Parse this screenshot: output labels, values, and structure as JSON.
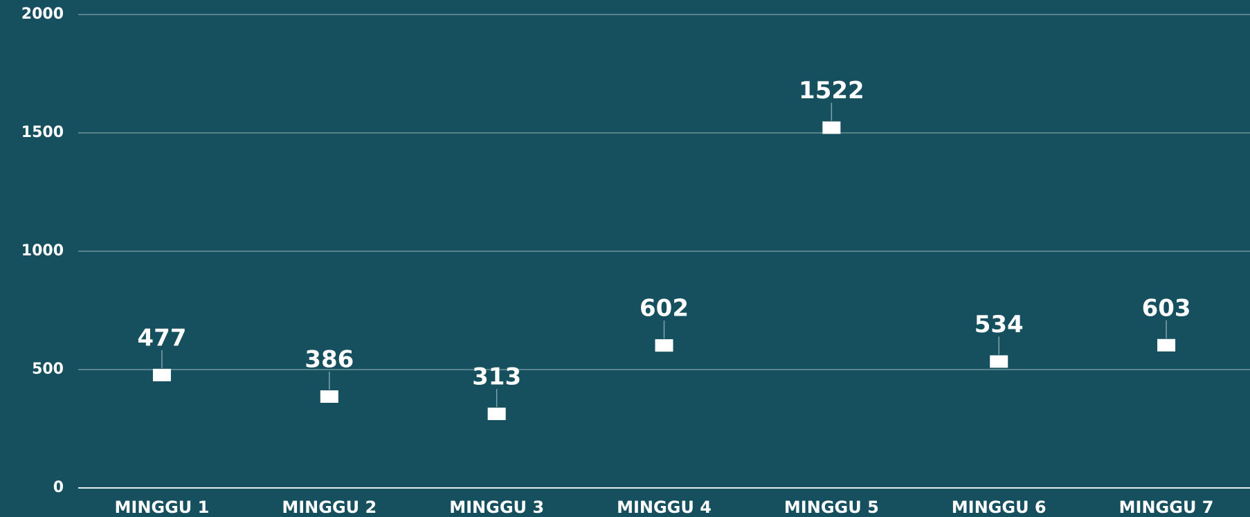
{
  "chart_data": {
    "type": "scatter",
    "categories": [
      "MINGGU 1",
      "MINGGU 2",
      "MINGGU 3",
      "MINGGU 4",
      "MINGGU 5",
      "MINGGU 6",
      "MINGGU 7"
    ],
    "values": [
      477,
      386,
      313,
      602,
      1522,
      534,
      603
    ],
    "color": "#ffffff",
    "background": "#164f5e",
    "grid_color": "#7fa3ab",
    "ylim": [
      0,
      2000
    ],
    "yticks": [
      0,
      500,
      1000,
      1500,
      2000
    ],
    "grid": true
  }
}
